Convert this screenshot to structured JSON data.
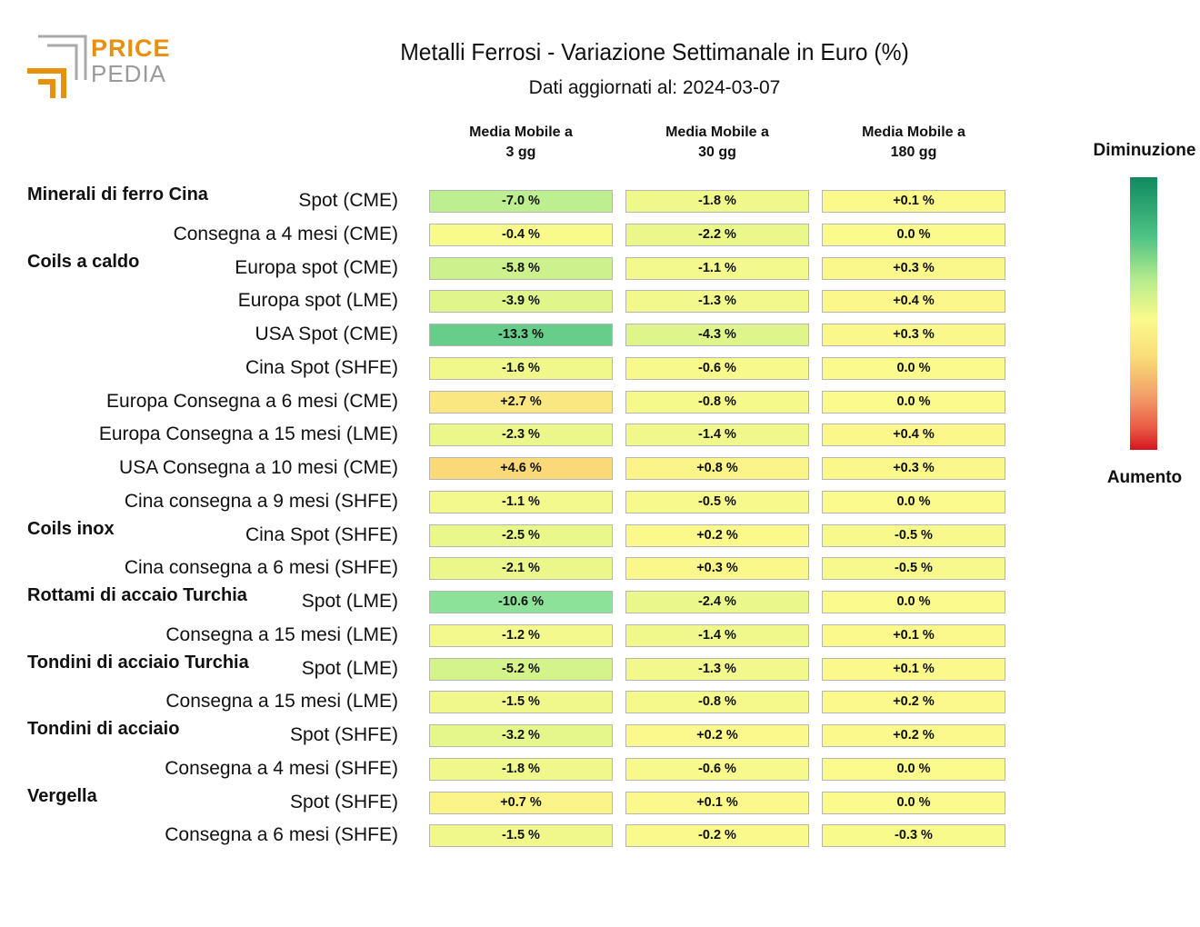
{
  "logo": {
    "line1": "PRICE",
    "line2": "PEDIA"
  },
  "chart_data": {
    "type": "table",
    "title": "Metalli Ferrosi - Variazione Settimanale in Euro (%)",
    "subtitle": "Dati aggiornati al: 2024-03-07",
    "columns": [
      "Media Mobile a\n3 gg",
      "Media Mobile a\n30 gg",
      "Media Mobile a\n180 gg"
    ],
    "legend": {
      "top": "Diminuzione",
      "bottom": "Aumento"
    },
    "colors": {
      "strong_decrease": "#0f8a5f",
      "neutral": "#fbfa8c",
      "strong_increase": "#d4151f"
    },
    "groups": [
      {
        "name": "Minerali di ferro Cina",
        "rows": [
          {
            "label": "Spot (CME)",
            "values": [
              -7.0,
              -1.8,
              0.1
            ],
            "text": [
              "-7.0 %",
              "-1.8 %",
              "+0.1 %"
            ]
          },
          {
            "label": "Consegna a 4 mesi (CME)",
            "values": [
              -0.4,
              -2.2,
              0.0
            ],
            "text": [
              "-0.4 %",
              "-2.2 %",
              "0.0 %"
            ]
          }
        ]
      },
      {
        "name": "Coils a caldo",
        "rows": [
          {
            "label": "Europa spot (CME)",
            "values": [
              -5.8,
              -1.1,
              0.3
            ],
            "text": [
              "-5.8 %",
              "-1.1 %",
              "+0.3 %"
            ]
          },
          {
            "label": "Europa spot (LME)",
            "values": [
              -3.9,
              -1.3,
              0.4
            ],
            "text": [
              "-3.9 %",
              "-1.3 %",
              "+0.4 %"
            ]
          },
          {
            "label": "USA Spot (CME)",
            "values": [
              -13.3,
              -4.3,
              0.3
            ],
            "text": [
              "-13.3 %",
              "-4.3 %",
              "+0.3 %"
            ]
          },
          {
            "label": "Cina Spot (SHFE)",
            "values": [
              -1.6,
              -0.6,
              0.0
            ],
            "text": [
              "-1.6 %",
              "-0.6 %",
              "0.0 %"
            ]
          },
          {
            "label": "Europa Consegna a 6 mesi (CME)",
            "values": [
              2.7,
              -0.8,
              0.0
            ],
            "text": [
              "+2.7 %",
              "-0.8 %",
              "0.0 %"
            ]
          },
          {
            "label": "Europa Consegna a 15 mesi (LME)",
            "values": [
              -2.3,
              -1.4,
              0.4
            ],
            "text": [
              "-2.3 %",
              "-1.4 %",
              "+0.4 %"
            ]
          },
          {
            "label": "USA Consegna a 10 mesi (CME)",
            "values": [
              4.6,
              0.8,
              0.3
            ],
            "text": [
              "+4.6 %",
              "+0.8 %",
              "+0.3 %"
            ]
          },
          {
            "label": "Cina consegna a 9 mesi (SHFE)",
            "values": [
              -1.1,
              -0.5,
              0.0
            ],
            "text": [
              "-1.1 %",
              "-0.5 %",
              "0.0 %"
            ]
          }
        ]
      },
      {
        "name": "Coils inox",
        "rows": [
          {
            "label": "Cina Spot (SHFE)",
            "values": [
              -2.5,
              0.2,
              -0.5
            ],
            "text": [
              "-2.5 %",
              "+0.2 %",
              "-0.5 %"
            ]
          },
          {
            "label": "Cina consegna a 6 mesi (SHFE)",
            "values": [
              -2.1,
              0.3,
              -0.5
            ],
            "text": [
              "-2.1 %",
              "+0.3 %",
              "-0.5 %"
            ]
          }
        ]
      },
      {
        "name": "Rottami di accaio Turchia",
        "rows": [
          {
            "label": "Spot (LME)",
            "values": [
              -10.6,
              -2.4,
              0.0
            ],
            "text": [
              "-10.6 %",
              "-2.4 %",
              "0.0 %"
            ]
          },
          {
            "label": "Consegna a 15 mesi (LME)",
            "values": [
              -1.2,
              -1.4,
              0.1
            ],
            "text": [
              "-1.2 %",
              "-1.4 %",
              "+0.1 %"
            ]
          }
        ]
      },
      {
        "name": "Tondini di acciaio Turchia",
        "rows": [
          {
            "label": "Spot (LME)",
            "values": [
              -5.2,
              -1.3,
              0.1
            ],
            "text": [
              "-5.2 %",
              "-1.3 %",
              "+0.1 %"
            ]
          },
          {
            "label": "Consegna a 15 mesi (LME)",
            "values": [
              -1.5,
              -0.8,
              0.2
            ],
            "text": [
              "-1.5 %",
              "-0.8 %",
              "+0.2 %"
            ]
          }
        ]
      },
      {
        "name": "Tondini di acciaio",
        "rows": [
          {
            "label": "Spot (SHFE)",
            "values": [
              -3.2,
              0.2,
              0.2
            ],
            "text": [
              "-3.2 %",
              "+0.2 %",
              "+0.2 %"
            ]
          },
          {
            "label": "Consegna a 4 mesi (SHFE)",
            "values": [
              -1.8,
              -0.6,
              0.0
            ],
            "text": [
              "-1.8 %",
              "-0.6 %",
              "0.0 %"
            ]
          }
        ]
      },
      {
        "name": "Vergella",
        "rows": [
          {
            "label": "Spot (SHFE)",
            "values": [
              0.7,
              0.1,
              0.0
            ],
            "text": [
              "+0.7 %",
              "+0.1 %",
              "0.0 %"
            ]
          },
          {
            "label": "Consegna a 6 mesi (SHFE)",
            "values": [
              -1.5,
              -0.2,
              -0.3
            ],
            "text": [
              "-1.5 %",
              "-0.2 %",
              "-0.3 %"
            ]
          }
        ]
      }
    ]
  }
}
